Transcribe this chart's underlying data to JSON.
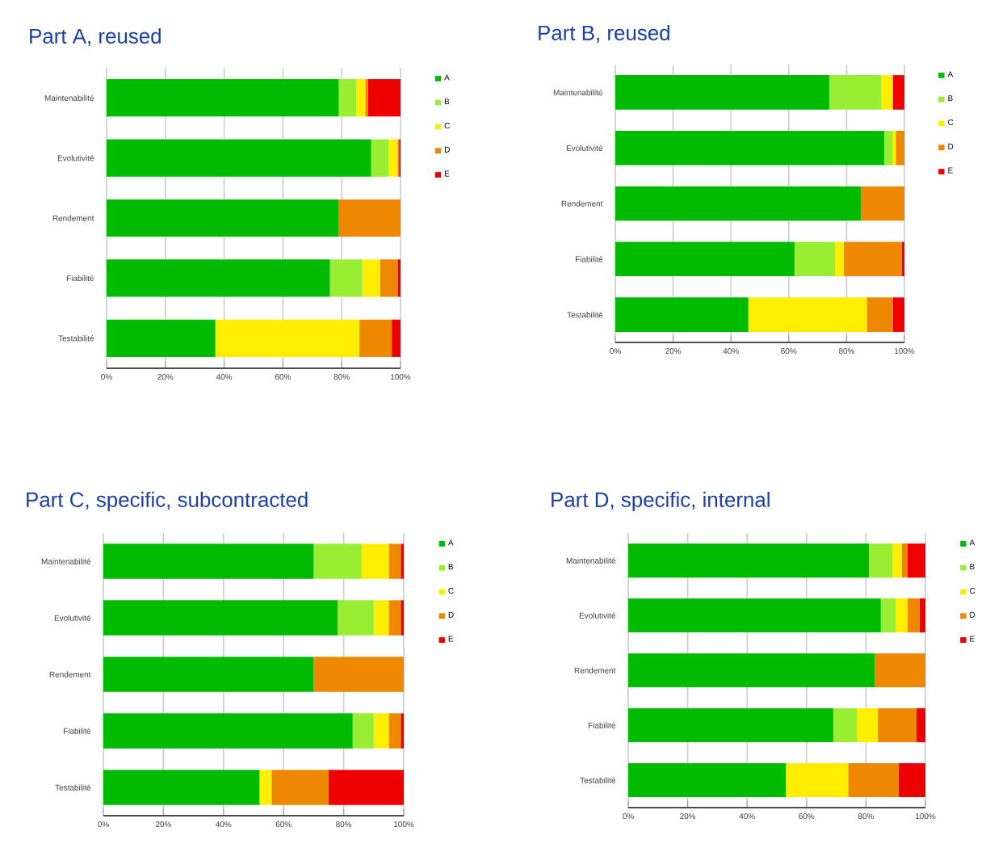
{
  "chart_data": [
    {
      "type": "bar",
      "orientation": "horizontal",
      "stacked": true,
      "title": "Part A, reused",
      "categories": [
        "Maintenabilité",
        "Evolutivité",
        "Rendement",
        "Fiabilité",
        "Testabilité"
      ],
      "xlim": [
        0,
        100
      ],
      "xticks": [
        {
          "value": 0,
          "label": "0%"
        },
        {
          "value": 20,
          "label": "20%"
        },
        {
          "value": 40,
          "label": "40%"
        },
        {
          "value": 60,
          "label": "60%"
        },
        {
          "value": 80,
          "label": "80%"
        },
        {
          "value": 100,
          "label": "100%"
        }
      ],
      "grid": "x",
      "legend": "right",
      "series": [
        {
          "name": "A",
          "color": "#00bb00",
          "values": [
            79,
            90,
            79,
            76,
            37
          ]
        },
        {
          "name": "B",
          "color": "#99ee33",
          "values": [
            6,
            6,
            null,
            11,
            null
          ]
        },
        {
          "name": "C",
          "color": "#ffee00",
          "values": [
            3,
            3,
            null,
            6,
            49
          ]
        },
        {
          "name": "D",
          "color": "#ee8800",
          "values": [
            1,
            0.5,
            21,
            6,
            11
          ]
        },
        {
          "name": "E",
          "color": "#ee0000",
          "values": [
            11,
            0.5,
            null,
            1,
            3
          ]
        }
      ]
    },
    {
      "type": "bar",
      "orientation": "horizontal",
      "stacked": true,
      "title": "Part B, reused",
      "categories": [
        "Maintenabilité",
        "Evolutivité",
        "Rendement",
        "Fiabilité",
        "Testabilité"
      ],
      "xlim": [
        0,
        100
      ],
      "xticks": [
        {
          "value": 0,
          "label": "0%"
        },
        {
          "value": 20,
          "label": "20%"
        },
        {
          "value": 40,
          "label": "40%"
        },
        {
          "value": 60,
          "label": "60%"
        },
        {
          "value": 80,
          "label": "80%"
        },
        {
          "value": 100,
          "label": "100%"
        }
      ],
      "grid": "x",
      "legend": "right",
      "series": [
        {
          "name": "A",
          "color": "#00bb00",
          "values": [
            74,
            93,
            85,
            62,
            46
          ]
        },
        {
          "name": "B",
          "color": "#99ee33",
          "values": [
            18,
            3,
            null,
            14,
            null
          ]
        },
        {
          "name": "C",
          "color": "#ffee00",
          "values": [
            4,
            1,
            null,
            3,
            41
          ]
        },
        {
          "name": "D",
          "color": "#ee8800",
          "values": [
            null,
            3,
            15,
            20,
            9
          ]
        },
        {
          "name": "E",
          "color": "#ee0000",
          "values": [
            4,
            null,
            null,
            1,
            4
          ]
        }
      ]
    },
    {
      "type": "bar",
      "orientation": "horizontal",
      "stacked": true,
      "title": "Part C, specific, subcontracted",
      "categories": [
        "Maintenabilité",
        "Evolutivité",
        "Rendement",
        "Fiabilité",
        "Testabilité"
      ],
      "xlim": [
        0,
        100
      ],
      "xticks": [
        {
          "value": 0,
          "label": "0%"
        },
        {
          "value": 20,
          "label": "20%"
        },
        {
          "value": 40,
          "label": "40%"
        },
        {
          "value": 60,
          "label": "60%"
        },
        {
          "value": 80,
          "label": "80%"
        },
        {
          "value": 100,
          "label": "100%"
        }
      ],
      "grid": "x",
      "legend": "right",
      "series": [
        {
          "name": "A",
          "color": "#00bb00",
          "values": [
            70,
            78,
            70,
            83,
            52
          ]
        },
        {
          "name": "B",
          "color": "#99ee33",
          "values": [
            16,
            12,
            null,
            7,
            null
          ]
        },
        {
          "name": "C",
          "color": "#ffee00",
          "values": [
            9,
            5,
            null,
            5,
            4
          ]
        },
        {
          "name": "D",
          "color": "#ee8800",
          "values": [
            4,
            4,
            30,
            4,
            19
          ]
        },
        {
          "name": "E",
          "color": "#ee0000",
          "values": [
            1,
            1,
            null,
            1,
            25
          ]
        }
      ]
    },
    {
      "type": "bar",
      "orientation": "horizontal",
      "stacked": true,
      "title": "Part D, specific, internal",
      "categories": [
        "Maintenabilité",
        "Evolutivité",
        "Rendement",
        "Fiabilité",
        "Testabilité"
      ],
      "xlim": [
        0,
        100
      ],
      "xticks": [
        {
          "value": 0,
          "label": "0%"
        },
        {
          "value": 20,
          "label": "20%"
        },
        {
          "value": 40,
          "label": "40%"
        },
        {
          "value": 60,
          "label": "60%"
        },
        {
          "value": 80,
          "label": "80%"
        },
        {
          "value": 100,
          "label": "100%"
        }
      ],
      "grid": "x",
      "legend": "right",
      "series": [
        {
          "name": "A",
          "color": "#00bb00",
          "values": [
            81,
            85,
            83,
            69,
            53
          ]
        },
        {
          "name": "B",
          "color": "#99ee33",
          "values": [
            8,
            5,
            null,
            8,
            null
          ]
        },
        {
          "name": "C",
          "color": "#ffee00",
          "values": [
            3,
            4,
            null,
            7,
            21
          ]
        },
        {
          "name": "D",
          "color": "#ee8800",
          "values": [
            2,
            4,
            17,
            13,
            17
          ]
        },
        {
          "name": "E",
          "color": "#ee0000",
          "values": [
            6,
            2,
            null,
            3,
            9
          ]
        }
      ]
    }
  ]
}
